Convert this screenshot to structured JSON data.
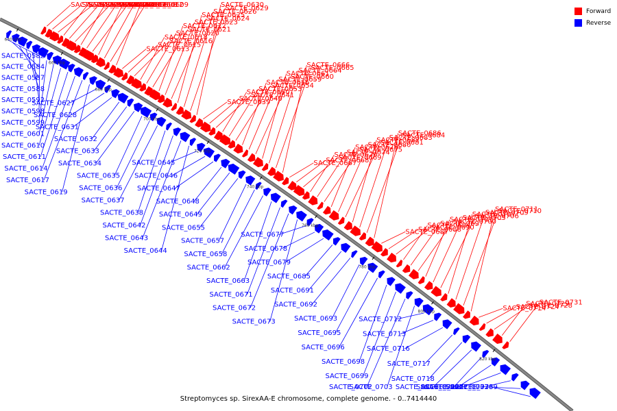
{
  "caption": "Streptomyces sp. SirexAA-E chromosome, complete genome. - 0..7414440",
  "legend": {
    "forward_label": "Forward",
    "reverse_label": "Reverse",
    "forward_color": "#ff0000",
    "reverse_color": "#0000ff"
  },
  "colors": {
    "backbone": "#888888",
    "leader_forward": "#ff0000",
    "leader_reverse": "#0000ff",
    "tick_mark": "#000000"
  },
  "ticks": [
    "640 kbp",
    "660 kbp",
    "680 kbp",
    "700 kbp",
    "720 kbp",
    "740 kbp",
    "760 kbp",
    "780 kbp",
    "800 kbp",
    "820 kbp"
  ],
  "forward_genes": [
    "SACTE_0586",
    "SACTE_0591",
    "SACTE_0593",
    "SACTE_0596",
    "SACTE_0600",
    "SACTE_0603",
    "SACTE_0604",
    "SACTE_0605",
    "SACTE_0606",
    "SACTE_0607",
    "SACTE_0608",
    "SACTE_0609",
    "SACTE_0612",
    "SACTE_0613",
    "SACTE_0615",
    "SACTE_0616",
    "SACTE_0618",
    "SACTE_0620",
    "SACTE_0621",
    "SACTE_0622",
    "SACTE_0623",
    "SACTE_0624",
    "SACTE_0625",
    "SACTE_0626",
    "SACTE_0629",
    "SACTE_0630",
    "SACTE_0639",
    "SACTE_0640",
    "SACTE_0641",
    "SACTE_0650",
    "SACTE_0653",
    "SACTE_0654",
    "SACTE_0656",
    "SACTE_0659",
    "SACTE_0660",
    "SACTE_0661",
    "SACTE_0664",
    "SACTE_0665",
    "SACTE_0666",
    "SACTE_0667",
    "SACTE_0668",
    "SACTE_0669",
    "SACTE_0670",
    "SACTE_0674",
    "SACTE_0675",
    "SACTE_0676",
    "SACTE_0680",
    "SACTE_0681",
    "SACTE_0682",
    "SACTE_0683",
    "SACTE_0684",
    "SACTE_0686",
    "SACTE_0687",
    "SACTE_0688",
    "SACTE_0690",
    "SACTE_0694",
    "SACTE_0697",
    "SACTE_0700",
    "SACTE_0701",
    "SACTE_0705",
    "SACTE_0706",
    "SACTE_0707",
    "SACTE_0709",
    "SACTE_0710",
    "SACTE_0711",
    "SACTE_0714",
    "SACTE_0724",
    "SACTE_0728",
    "SACTE_0729",
    "SACTE_0731"
  ],
  "reverse_genes": [
    "SACTE_0582",
    "SACTE_0584",
    "SACTE_0587",
    "SACTE_0588",
    "SACTE_0592",
    "SACTE_0598",
    "SACTE_0599",
    "SACTE_0601",
    "SACTE_0610",
    "SACTE_0611",
    "SACTE_0614",
    "SACTE_0617",
    "SACTE_0619",
    "SACTE_0627",
    "SACTE_0628",
    "SACTE_0631",
    "SACTE_0632",
    "SACTE_0633",
    "SACTE_0634",
    "SACTE_0635",
    "SACTE_0636",
    "SACTE_0637",
    "SACTE_0638",
    "SACTE_0642",
    "SACTE_0643",
    "SACTE_0644",
    "SACTE_0645",
    "SACTE_0646",
    "SACTE_0647",
    "SACTE_0648",
    "SACTE_0649",
    "SACTE_0655",
    "SACTE_0657",
    "SACTE_0658",
    "SACTE_0662",
    "SACTE_0663",
    "SACTE_0671",
    "SACTE_0672",
    "SACTE_0673",
    "SACTE_0677",
    "SACTE_0678",
    "SACTE_0679",
    "SACTE_0685",
    "SACTE_0691",
    "SACTE_0692",
    "SACTE_0693",
    "SACTE_0695",
    "SACTE_0696",
    "SACTE_0698",
    "SACTE_0699",
    "SACTE_0702",
    "SACTE_0703",
    "SACTE_0712",
    "SACTE_0713",
    "SACTE_0716",
    "SACTE_0717",
    "SACTE_0718",
    "SACTE_0719",
    "SACTE_0720",
    "SACTE_0722",
    "SACTE_0727",
    "SACTE_0732",
    "SACTE_0736",
    "SACTE_0739"
  ]
}
